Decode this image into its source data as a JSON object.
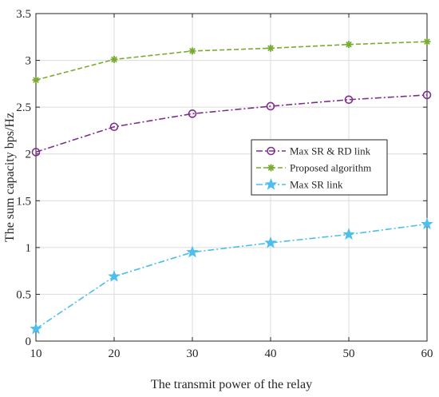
{
  "chart_data": {
    "type": "line",
    "title": "",
    "xlabel": "The transmit power of the relay",
    "ylabel": "The sum capacity bps/Hz",
    "x": [
      10,
      20,
      30,
      40,
      50,
      60
    ],
    "xlim": [
      10,
      60
    ],
    "ylim": [
      0,
      3.5
    ],
    "xticks": [
      "10",
      "20",
      "30",
      "40",
      "50",
      "60"
    ],
    "yticks": [
      "0",
      "0.5",
      "1",
      "1.5",
      "2",
      "2.5",
      "3",
      "3.5"
    ],
    "grid": true,
    "legend_position": "right",
    "series": [
      {
        "name": "Max SR & RD link",
        "values": [
          2.02,
          2.29,
          2.43,
          2.51,
          2.58,
          2.63
        ],
        "color": "#7e2f8e",
        "marker": "circle",
        "line_style": "dash-dot"
      },
      {
        "name": "Proposed algorithm",
        "values": [
          2.79,
          3.01,
          3.1,
          3.13,
          3.17,
          3.2
        ],
        "color": "#77ac30",
        "marker": "asterisk",
        "line_style": "dashed"
      },
      {
        "name": "Max SR link",
        "values": [
          0.13,
          0.69,
          0.95,
          1.05,
          1.14,
          1.25
        ],
        "color": "#4dbeee",
        "marker": "pentagram",
        "line_style": "dash-dot"
      }
    ]
  }
}
